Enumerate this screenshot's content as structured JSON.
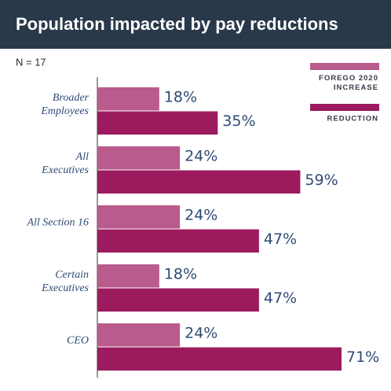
{
  "chart_data": {
    "type": "hbar",
    "title": "Population impacted by pay reductions",
    "subtitle": "N = 17",
    "categories": [
      "Broader\nEmployees",
      "All\nExecutives",
      "All Section 16",
      "Certain\nExecutives",
      "CEO"
    ],
    "series": [
      {
        "name": "FOREGO 2020\nINCREASE",
        "color": "#b95b8d",
        "values": [
          18,
          24,
          24,
          18,
          24
        ],
        "value_labels": [
          "18%",
          "24%",
          "24%",
          "18%",
          "24%"
        ]
      },
      {
        "name": "REDUCTION",
        "color": "#9b1b5e",
        "values": [
          35,
          59,
          47,
          47,
          71
        ],
        "value_labels": [
          "35%",
          "59%",
          "47%",
          "47%",
          "71%"
        ]
      }
    ]
  }
}
